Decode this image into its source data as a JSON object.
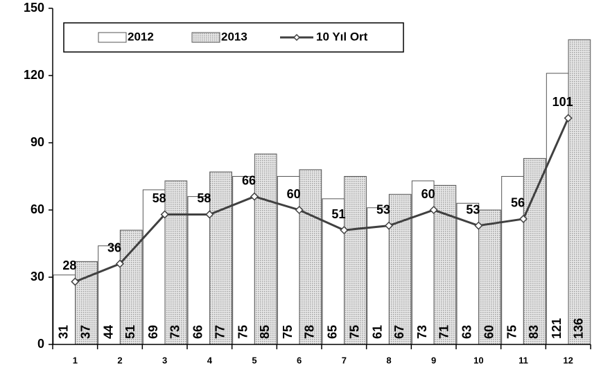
{
  "chart_data": {
    "type": "bar",
    "categories": [
      "1",
      "2",
      "3",
      "4",
      "5",
      "6",
      "7",
      "8",
      "9",
      "10",
      "11",
      "12"
    ],
    "series": [
      {
        "name": "2012",
        "color": "#ffffff",
        "values": [
          31,
          44,
          69,
          66,
          75,
          75,
          65,
          61,
          73,
          63,
          75,
          121
        ]
      },
      {
        "name": "2013",
        "color": "#a0a0a0",
        "pattern": "dots",
        "values": [
          37,
          51,
          73,
          77,
          85,
          78,
          75,
          67,
          71,
          60,
          83,
          136
        ]
      },
      {
        "name": "10 Yıl Ort",
        "type": "line",
        "color": "#404040",
        "marker": "diamond",
        "values": [
          28,
          36,
          58,
          58,
          66,
          60,
          51,
          53,
          60,
          53,
          56,
          101
        ]
      }
    ],
    "ylim": [
      0,
      150
    ],
    "yticks": [
      0,
      30,
      60,
      90,
      120,
      150
    ],
    "grid": false,
    "legend": "top-left"
  }
}
